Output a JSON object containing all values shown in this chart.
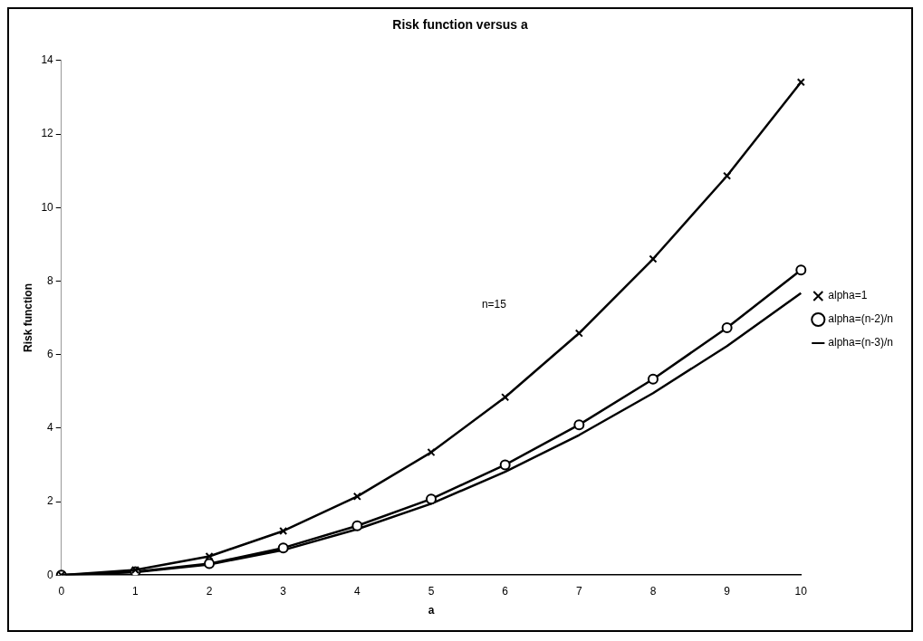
{
  "chart_data": {
    "type": "line",
    "title": "Risk function versus a",
    "xlabel": "a",
    "ylabel": "Risk function",
    "categories": [
      "0",
      "1",
      "2",
      "3",
      "4",
      "5",
      "6",
      "7",
      "8",
      "9",
      "10"
    ],
    "series": [
      {
        "name": "alpha=1",
        "color": "#000000",
        "marker": "cross",
        "values": [
          0,
          0.14,
          0.51,
          1.2,
          2.14,
          3.34,
          4.84,
          6.58,
          8.6,
          10.86,
          13.41
        ]
      },
      {
        "name": "alpha=(n-2)/n",
        "color": "#000000",
        "marker": "circle",
        "values": [
          0,
          0.09,
          0.31,
          0.74,
          1.34,
          2.07,
          3.0,
          4.09,
          5.33,
          6.73,
          8.3
        ]
      },
      {
        "name": "alpha=(n-3)/n",
        "color": "#000000",
        "marker": "none",
        "values": [
          0,
          0.08,
          0.29,
          0.68,
          1.25,
          1.94,
          2.81,
          3.81,
          4.95,
          6.23,
          7.67
        ]
      }
    ],
    "ylim": [
      0,
      14
    ],
    "yticks": [
      0,
      2,
      4,
      6,
      8,
      10,
      12,
      14
    ],
    "grid": false,
    "legend": "right",
    "annotations": [
      "n=15"
    ]
  }
}
